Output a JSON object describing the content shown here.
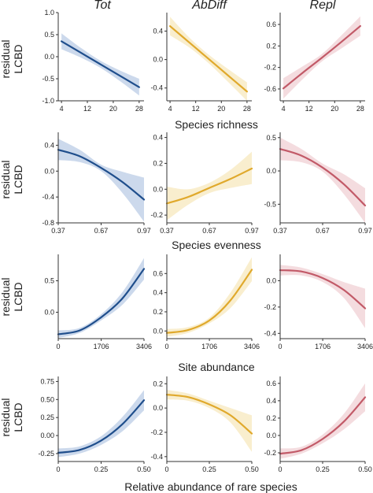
{
  "figure": {
    "col_titles": [
      "Tot",
      "AbDiff",
      "Repl"
    ],
    "ylabel_line1": "residual",
    "ylabel_line2": "LCBD",
    "row_titles": [
      "Species richness",
      "Species evenness",
      "Site abundance"
    ],
    "bottom_label": "Relative abundance of rare species"
  },
  "colors": {
    "Tot": "#1f4e8c",
    "AbDiff": "#e0a92c",
    "Repl": "#c25a68",
    "Tot_band": "#c7d5ea",
    "AbDiff_band": "#f8ecc9",
    "Repl_band": "#f3d8dc",
    "axis": "#333333"
  },
  "chart_data": [
    {
      "type": "line",
      "row": 0,
      "col": "Tot",
      "xlabel": "",
      "ylabel": "residual LCBD",
      "x_ticks": [
        "4",
        "12",
        "20",
        "28"
      ],
      "x_tick_values": [
        4,
        12,
        20,
        28
      ],
      "xlim": [
        3,
        29.5
      ],
      "y_ticks": [
        "1.0",
        "0.5",
        "0.0",
        "-0.5",
        "-1.0"
      ],
      "y_tick_values": [
        1.0,
        0.5,
        0.0,
        -0.5,
        -1.0
      ],
      "ylim": [
        -1.0,
        1.0
      ],
      "x": [
        4,
        10,
        16,
        22,
        28
      ],
      "y": [
        0.35,
        0.09,
        -0.17,
        -0.43,
        -0.69
      ],
      "lower": [
        0.17,
        -0.02,
        -0.25,
        -0.55,
        -0.88
      ],
      "upper": [
        0.53,
        0.2,
        -0.09,
        -0.31,
        -0.5
      ]
    },
    {
      "type": "line",
      "row": 0,
      "col": "AbDiff",
      "xlabel": "",
      "ylabel": "",
      "x_ticks": [
        "4",
        "12",
        "20",
        "28"
      ],
      "x_tick_values": [
        4,
        12,
        20,
        28
      ],
      "xlim": [
        3,
        29.5
      ],
      "y_ticks": [
        "0.4",
        "0.0",
        "-0.4"
      ],
      "y_tick_values": [
        0.4,
        0.0,
        -0.4
      ],
      "ylim": [
        -0.58,
        0.66
      ],
      "x": [
        4,
        10,
        16,
        22,
        28
      ],
      "y": [
        0.47,
        0.24,
        0.01,
        -0.22,
        -0.45
      ],
      "lower": [
        0.34,
        0.17,
        -0.05,
        -0.31,
        -0.58
      ],
      "upper": [
        0.6,
        0.31,
        0.07,
        -0.13,
        -0.32
      ]
    },
    {
      "type": "line",
      "row": 0,
      "col": "Repl",
      "xlabel": "",
      "ylabel": "",
      "x_ticks": [
        "4",
        "12",
        "20",
        "28"
      ],
      "x_tick_values": [
        4,
        12,
        20,
        28
      ],
      "xlim": [
        3,
        29.5
      ],
      "y_ticks": [
        "0.6",
        "0.2",
        "-0.2",
        "-0.6"
      ],
      "y_tick_values": [
        0.6,
        0.2,
        -0.2,
        -0.6
      ],
      "ylim": [
        -0.82,
        0.82
      ],
      "x": [
        4,
        10,
        16,
        22,
        28
      ],
      "y": [
        -0.59,
        -0.3,
        -0.02,
        0.27,
        0.57
      ],
      "lower": [
        -0.78,
        -0.42,
        -0.09,
        0.15,
        0.39
      ],
      "upper": [
        -0.4,
        -0.18,
        0.05,
        0.39,
        0.75
      ]
    },
    {
      "type": "line",
      "row": 1,
      "col": "Tot",
      "xlabel": "",
      "ylabel": "residual LCBD",
      "x_ticks": [
        "0.37",
        "0.67",
        "0.97"
      ],
      "x_tick_values": [
        0.37,
        0.67,
        0.97
      ],
      "xlim": [
        0.37,
        0.97
      ],
      "y_ticks": [
        "0.4",
        "0.0",
        "-0.4",
        "-0.8"
      ],
      "y_tick_values": [
        0.4,
        0.0,
        -0.4,
        -0.8
      ],
      "ylim": [
        -0.8,
        0.6
      ],
      "x": [
        0.37,
        0.52,
        0.67,
        0.82,
        0.97
      ],
      "y": [
        0.33,
        0.23,
        0.05,
        -0.17,
        -0.44
      ],
      "lower": [
        0.17,
        0.14,
        0.0,
        -0.34,
        -0.78
      ],
      "upper": [
        0.5,
        0.33,
        0.1,
        -0.01,
        -0.1
      ]
    },
    {
      "type": "line",
      "row": 1,
      "col": "AbDiff",
      "xlabel": "",
      "ylabel": "",
      "x_ticks": [
        "0.37",
        "0.67",
        "0.97"
      ],
      "x_tick_values": [
        0.37,
        0.67,
        0.97
      ],
      "xlim": [
        0.37,
        0.97
      ],
      "y_ticks": [
        "0.4",
        "0.2",
        "0.0",
        "-0.2"
      ],
      "y_tick_values": [
        0.4,
        0.2,
        0.0,
        -0.2
      ],
      "ylim": [
        -0.26,
        0.44
      ],
      "x": [
        0.37,
        0.52,
        0.67,
        0.82,
        0.97
      ],
      "y": [
        -0.11,
        -0.06,
        0.01,
        0.08,
        0.16
      ],
      "lower": [
        -0.24,
        -0.12,
        -0.03,
        0.01,
        0.04
      ],
      "upper": [
        0.02,
        0.0,
        0.05,
        0.15,
        0.29
      ]
    },
    {
      "type": "line",
      "row": 1,
      "col": "Repl",
      "xlabel": "",
      "ylabel": "",
      "x_ticks": [
        "0.37",
        "0.67",
        "0.97"
      ],
      "x_tick_values": [
        0.37,
        0.67,
        0.97
      ],
      "xlim": [
        0.37,
        0.97
      ],
      "y_ticks": [
        "0.5",
        "0.0",
        "-0.5"
      ],
      "y_tick_values": [
        0.5,
        0.0,
        -0.5
      ],
      "ylim": [
        -0.78,
        0.58
      ],
      "x": [
        0.37,
        0.52,
        0.67,
        0.82,
        0.97
      ],
      "y": [
        0.33,
        0.23,
        0.05,
        -0.2,
        -0.52
      ],
      "lower": [
        0.16,
        0.13,
        -0.01,
        -0.35,
        -0.78
      ],
      "upper": [
        0.5,
        0.33,
        0.11,
        -0.05,
        -0.26
      ]
    },
    {
      "type": "line",
      "row": 2,
      "col": "Tot",
      "xlabel": "",
      "ylabel": "residual LCBD",
      "x_ticks": [
        "0",
        "1706",
        "3406"
      ],
      "x_tick_values": [
        0,
        1706,
        3406
      ],
      "xlim": [
        0,
        3406
      ],
      "y_ticks": [
        "0.5",
        "0.0"
      ],
      "y_tick_values": [
        0.5,
        0.0
      ],
      "ylim": [
        -0.42,
        0.92
      ],
      "x": [
        0,
        850,
        1706,
        2550,
        3406
      ],
      "y": [
        -0.35,
        -0.29,
        -0.08,
        0.22,
        0.69
      ],
      "lower": [
        -0.41,
        -0.33,
        -0.13,
        0.12,
        0.52
      ],
      "upper": [
        -0.29,
        -0.25,
        -0.03,
        0.32,
        0.86
      ]
    },
    {
      "type": "line",
      "row": 2,
      "col": "AbDiff",
      "xlabel": "",
      "ylabel": "",
      "x_ticks": [
        "0",
        "1706",
        "3406"
      ],
      "x_tick_values": [
        0,
        1706,
        3406
      ],
      "xlim": [
        0,
        3406
      ],
      "y_ticks": [
        "0.6",
        "0.4",
        "0.2",
        "0.0"
      ],
      "y_tick_values": [
        0.6,
        0.4,
        0.2,
        0.0
      ],
      "ylim": [
        -0.08,
        0.8
      ],
      "x": [
        0,
        850,
        1706,
        2550,
        3406
      ],
      "y": [
        -0.02,
        0.01,
        0.11,
        0.32,
        0.64
      ],
      "lower": [
        -0.06,
        -0.02,
        0.08,
        0.24,
        0.52
      ],
      "upper": [
        0.02,
        0.04,
        0.14,
        0.4,
        0.77
      ]
    },
    {
      "type": "line",
      "row": 2,
      "col": "Repl",
      "xlabel": "",
      "ylabel": "",
      "x_ticks": [
        "0",
        "1706",
        "3406"
      ],
      "x_tick_values": [
        0,
        1706,
        3406
      ],
      "xlim": [
        0,
        3406
      ],
      "y_ticks": [
        "0.0",
        "-0.2",
        "-0.4"
      ],
      "y_tick_values": [
        0.0,
        -0.2,
        -0.4
      ],
      "ylim": [
        -0.44,
        0.2
      ],
      "x": [
        0,
        850,
        1706,
        2550,
        3406
      ],
      "y": [
        0.08,
        0.07,
        0.02,
        -0.07,
        -0.21
      ],
      "lower": [
        0.04,
        0.04,
        -0.01,
        -0.13,
        -0.36
      ],
      "upper": [
        0.12,
        0.1,
        0.05,
        -0.01,
        -0.06
      ]
    },
    {
      "type": "line",
      "row": 3,
      "col": "Tot",
      "xlabel": "Relative abundance of rare species",
      "ylabel": "residual LCBD",
      "x_ticks": [
        "0",
        "0.25",
        "0.50"
      ],
      "x_tick_values": [
        0,
        0.25,
        0.5
      ],
      "xlim": [
        0,
        0.5
      ],
      "y_ticks": [
        "0.75",
        "0.50",
        "0.25",
        "0.00",
        "-0.25"
      ],
      "y_tick_values": [
        0.75,
        0.5,
        0.25,
        0.0,
        -0.25
      ],
      "ylim": [
        -0.36,
        0.82
      ],
      "x": [
        0,
        0.125,
        0.25,
        0.375,
        0.5
      ],
      "y": [
        -0.24,
        -0.2,
        -0.07,
        0.16,
        0.49
      ],
      "lower": [
        -0.3,
        -0.25,
        -0.13,
        0.06,
        0.35
      ],
      "upper": [
        -0.18,
        -0.15,
        -0.01,
        0.26,
        0.63
      ]
    },
    {
      "type": "line",
      "row": 3,
      "col": "AbDiff",
      "xlabel": "",
      "ylabel": "",
      "x_ticks": [
        "0",
        "0.25",
        "0.50"
      ],
      "x_tick_values": [
        0,
        0.25,
        0.5
      ],
      "xlim": [
        0,
        0.5
      ],
      "y_ticks": [
        "0.2",
        "0.0",
        "-0.2",
        "-0.4"
      ],
      "y_tick_values": [
        0.2,
        0.0,
        -0.2,
        -0.4
      ],
      "ylim": [
        -0.44,
        0.26
      ],
      "x": [
        0,
        0.125,
        0.25,
        0.375,
        0.5
      ],
      "y": [
        0.11,
        0.09,
        0.03,
        -0.06,
        -0.21
      ],
      "lower": [
        0.07,
        0.06,
        0.0,
        -0.12,
        -0.36
      ],
      "upper": [
        0.15,
        0.12,
        0.06,
        0.0,
        -0.06
      ]
    },
    {
      "type": "line",
      "row": 3,
      "col": "Repl",
      "xlabel": "",
      "ylabel": "",
      "x_ticks": [
        "0",
        "0.25",
        "0.50"
      ],
      "x_tick_values": [
        0,
        0.25,
        0.5
      ],
      "xlim": [
        0,
        0.5
      ],
      "y_ticks": [
        "0.6",
        "0.4",
        "0.2",
        "0.0",
        "-0.2"
      ],
      "y_tick_values": [
        0.6,
        0.4,
        0.2,
        0.0,
        -0.2
      ],
      "ylim": [
        -0.3,
        0.68
      ],
      "x": [
        0,
        0.125,
        0.25,
        0.375,
        0.5
      ],
      "y": [
        -0.21,
        -0.17,
        -0.04,
        0.16,
        0.44
      ],
      "lower": [
        -0.27,
        -0.21,
        -0.09,
        0.07,
        0.28
      ],
      "upper": [
        -0.15,
        -0.13,
        0.01,
        0.25,
        0.6
      ]
    }
  ]
}
